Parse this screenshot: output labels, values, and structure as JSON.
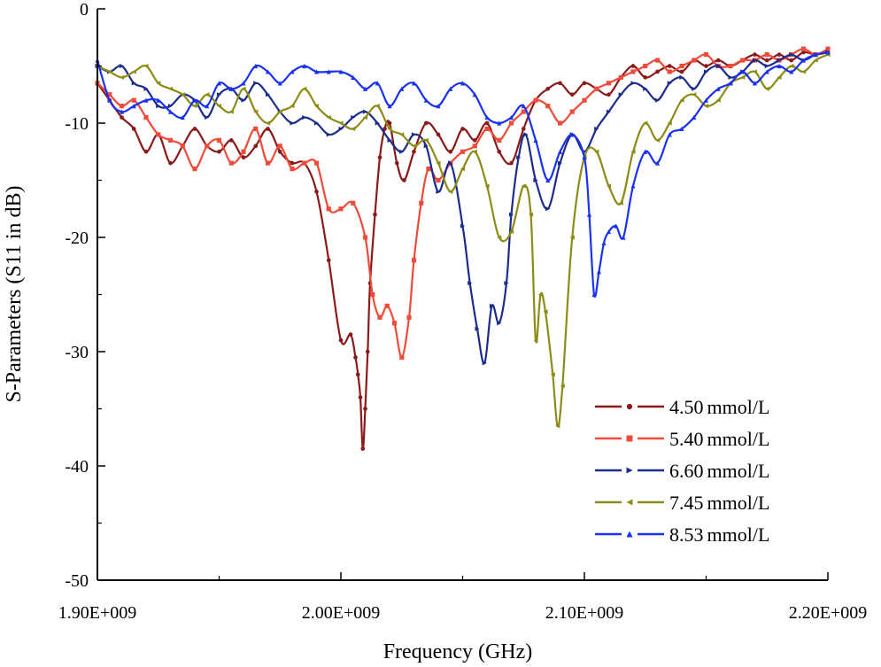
{
  "chart_data": {
    "type": "line",
    "title": "",
    "xlabel": "Frequency (GHz)",
    "ylabel": "S-Parameters (S11 in dB)",
    "xlim": [
      1.9,
      2.2
    ],
    "ylim": [
      -50,
      0
    ],
    "grid": false,
    "legend_position": "bottom-right",
    "x_ticks": [
      {
        "value": 1.9,
        "label": "1.90E+009"
      },
      {
        "value": 2.0,
        "label": "2.00E+009"
      },
      {
        "value": 2.1,
        "label": "2.10E+009"
      },
      {
        "value": 2.2,
        "label": "2.20E+009"
      }
    ],
    "y_ticks": [
      {
        "value": 0,
        "label": "0"
      },
      {
        "value": -10,
        "label": "-10"
      },
      {
        "value": -20,
        "label": "-20"
      },
      {
        "value": -30,
        "label": "-30"
      },
      {
        "value": -40,
        "label": "-40"
      },
      {
        "value": -50,
        "label": "-50"
      }
    ],
    "series": [
      {
        "name": "4.50 mmol/L",
        "label_value": "4.50",
        "label_unit": "mmol/L",
        "color": "#8b1a1a",
        "marker": "circle",
        "x": [
          1.9,
          1.905,
          1.91,
          1.915,
          1.92,
          1.925,
          1.93,
          1.935,
          1.94,
          1.945,
          1.95,
          1.955,
          1.96,
          1.965,
          1.97,
          1.975,
          1.98,
          1.985,
          1.99,
          1.995,
          2.0,
          2.004,
          2.006,
          2.007,
          2.008,
          2.009,
          2.01,
          2.011,
          2.012,
          2.014,
          2.016,
          2.018,
          2.02,
          2.023,
          2.026,
          2.03,
          2.035,
          2.04,
          2.045,
          2.05,
          2.055,
          2.06,
          2.065,
          2.07,
          2.075,
          2.08,
          2.085,
          2.09,
          2.095,
          2.1,
          2.105,
          2.11,
          2.115,
          2.12,
          2.125,
          2.13,
          2.135,
          2.14,
          2.145,
          2.15,
          2.155,
          2.16,
          2.165,
          2.17,
          2.175,
          2.18,
          2.185,
          2.19,
          2.195,
          2.2
        ],
        "y": [
          -6.5,
          -8.0,
          -9.5,
          -10.5,
          -12.5,
          -11.0,
          -13.5,
          -12.0,
          -10.5,
          -12.0,
          -12.5,
          -11.5,
          -13.0,
          -12.0,
          -10.5,
          -12.5,
          -13.5,
          -13.5,
          -16.0,
          -22.0,
          -29.0,
          -28.5,
          -30.5,
          -32.0,
          -34.0,
          -38.5,
          -35.0,
          -30.0,
          -24.0,
          -18.0,
          -13.0,
          -10.5,
          -10.0,
          -13.5,
          -15.0,
          -12.5,
          -10.0,
          -11.0,
          -12.5,
          -10.5,
          -11.5,
          -10.0,
          -12.5,
          -13.5,
          -10.5,
          -8.0,
          -7.0,
          -6.5,
          -7.5,
          -6.5,
          -7.0,
          -7.5,
          -6.0,
          -5.0,
          -6.0,
          -5.5,
          -5.0,
          -5.5,
          -4.5,
          -5.0,
          -4.5,
          -5.0,
          -4.5,
          -4.0,
          -4.5,
          -4.0,
          -4.5,
          -3.8,
          -4.0,
          -3.8
        ]
      },
      {
        "name": "5.40 mmol/L",
        "label_value": "5.40",
        "label_unit": "mmol/L",
        "color": "#f04a3a",
        "marker": "square",
        "x": [
          1.9,
          1.905,
          1.91,
          1.915,
          1.92,
          1.925,
          1.93,
          1.935,
          1.94,
          1.945,
          1.95,
          1.955,
          1.96,
          1.965,
          1.97,
          1.975,
          1.98,
          1.985,
          1.99,
          1.995,
          2.0,
          2.005,
          2.01,
          2.013,
          2.016,
          2.019,
          2.022,
          2.025,
          2.028,
          2.03,
          2.033,
          2.036,
          2.04,
          2.045,
          2.05,
          2.055,
          2.06,
          2.065,
          2.07,
          2.075,
          2.08,
          2.085,
          2.09,
          2.095,
          2.1,
          2.105,
          2.11,
          2.115,
          2.12,
          2.125,
          2.13,
          2.135,
          2.14,
          2.145,
          2.15,
          2.155,
          2.16,
          2.165,
          2.17,
          2.175,
          2.18,
          2.185,
          2.19,
          2.195,
          2.2
        ],
        "y": [
          -6.5,
          -7.5,
          -8.5,
          -8.0,
          -9.5,
          -11.0,
          -11.5,
          -12.0,
          -14.0,
          -12.0,
          -11.5,
          -13.5,
          -12.5,
          -10.5,
          -13.5,
          -12.0,
          -14.0,
          -13.5,
          -13.5,
          -17.5,
          -17.5,
          -17.0,
          -20.0,
          -25.0,
          -27.0,
          -26.0,
          -27.5,
          -30.5,
          -27.0,
          -22.0,
          -17.0,
          -14.0,
          -15.0,
          -13.5,
          -12.5,
          -12.0,
          -10.5,
          -11.5,
          -10.0,
          -9.0,
          -8.0,
          -8.5,
          -10.0,
          -9.0,
          -8.0,
          -7.0,
          -6.5,
          -6.0,
          -5.5,
          -5.0,
          -4.5,
          -5.5,
          -5.0,
          -4.5,
          -4.0,
          -5.0,
          -5.0,
          -4.5,
          -4.5,
          -4.0,
          -4.5,
          -4.0,
          -3.5,
          -4.0,
          -3.5
        ]
      },
      {
        "name": "6.60 mmol/L",
        "label_value": "6.60",
        "label_unit": "mmol/L",
        "color": "#1c2c8c",
        "marker": "triangle-right",
        "x": [
          1.9,
          1.905,
          1.91,
          1.915,
          1.92,
          1.925,
          1.93,
          1.935,
          1.94,
          1.945,
          1.95,
          1.955,
          1.96,
          1.965,
          1.97,
          1.975,
          1.98,
          1.985,
          1.99,
          1.995,
          2.0,
          2.005,
          2.01,
          2.015,
          2.02,
          2.025,
          2.03,
          2.035,
          2.04,
          2.045,
          2.05,
          2.053,
          2.056,
          2.059,
          2.062,
          2.065,
          2.068,
          2.07,
          2.073,
          2.076,
          2.08,
          2.085,
          2.09,
          2.095,
          2.1,
          2.105,
          2.11,
          2.115,
          2.12,
          2.125,
          2.13,
          2.135,
          2.14,
          2.145,
          2.15,
          2.155,
          2.16,
          2.165,
          2.17,
          2.175,
          2.18,
          2.185,
          2.19,
          2.195,
          2.2
        ],
        "y": [
          -5.0,
          -5.5,
          -5.0,
          -6.5,
          -7.0,
          -8.5,
          -8.5,
          -7.5,
          -8.0,
          -9.5,
          -7.5,
          -7.0,
          -8.0,
          -6.5,
          -7.5,
          -9.0,
          -10.0,
          -9.5,
          -10.0,
          -11.0,
          -10.5,
          -9.5,
          -9.0,
          -10.0,
          -11.5,
          -12.5,
          -11.0,
          -12.0,
          -16.0,
          -13.5,
          -19.0,
          -24.0,
          -28.0,
          -31.0,
          -26.0,
          -27.5,
          -24.0,
          -18.0,
          -13.0,
          -11.0,
          -15.0,
          -17.5,
          -13.5,
          -11.0,
          -12.5,
          -10.5,
          -9.0,
          -7.5,
          -6.5,
          -7.0,
          -8.0,
          -6.5,
          -6.0,
          -7.0,
          -5.5,
          -5.0,
          -6.0,
          -5.5,
          -4.5,
          -5.0,
          -4.5,
          -4.0,
          -4.5,
          -4.0,
          -3.8
        ]
      },
      {
        "name": "7.45 mmol/L",
        "label_value": "7.45",
        "label_unit": "mmol/L",
        "color": "#8c8c14",
        "marker": "triangle-left",
        "x": [
          1.9,
          1.905,
          1.91,
          1.915,
          1.92,
          1.925,
          1.93,
          1.935,
          1.94,
          1.945,
          1.95,
          1.955,
          1.96,
          1.965,
          1.97,
          1.975,
          1.98,
          1.985,
          1.99,
          1.995,
          2.0,
          2.005,
          2.01,
          2.015,
          2.02,
          2.025,
          2.03,
          2.035,
          2.04,
          2.045,
          2.05,
          2.055,
          2.06,
          2.065,
          2.07,
          2.075,
          2.078,
          2.08,
          2.082,
          2.084,
          2.087,
          2.089,
          2.091,
          2.095,
          2.1,
          2.105,
          2.11,
          2.115,
          2.12,
          2.125,
          2.13,
          2.135,
          2.14,
          2.145,
          2.15,
          2.155,
          2.16,
          2.165,
          2.17,
          2.175,
          2.18,
          2.185,
          2.19,
          2.195,
          2.2
        ],
        "y": [
          -5.0,
          -5.5,
          -6.0,
          -5.5,
          -5.0,
          -6.5,
          -7.0,
          -7.5,
          -8.5,
          -7.5,
          -8.5,
          -9.0,
          -7.0,
          -9.0,
          -10.0,
          -9.0,
          -8.5,
          -7.0,
          -8.5,
          -9.5,
          -10.0,
          -10.5,
          -9.5,
          -8.5,
          -10.5,
          -11.0,
          -12.0,
          -11.5,
          -13.5,
          -16.0,
          -14.0,
          -12.5,
          -15.5,
          -20.0,
          -19.5,
          -15.5,
          -18.0,
          -29.0,
          -25.0,
          -26.5,
          -32.0,
          -36.5,
          -33.0,
          -20.0,
          -13.0,
          -12.5,
          -15.5,
          -17.0,
          -12.5,
          -10.0,
          -11.5,
          -10.0,
          -8.0,
          -7.5,
          -8.5,
          -8.0,
          -6.5,
          -6.0,
          -5.5,
          -7.0,
          -6.0,
          -5.0,
          -5.5,
          -4.5,
          -4.0
        ]
      },
      {
        "name": "8.53 mmol/L",
        "label_value": "8.53",
        "label_unit": "mmol/L",
        "color": "#1a32f0",
        "marker": "triangle-up",
        "x": [
          1.9,
          1.905,
          1.91,
          1.915,
          1.92,
          1.925,
          1.93,
          1.935,
          1.94,
          1.945,
          1.95,
          1.955,
          1.96,
          1.965,
          1.97,
          1.975,
          1.98,
          1.985,
          1.99,
          1.995,
          2.0,
          2.005,
          2.01,
          2.015,
          2.02,
          2.025,
          2.03,
          2.035,
          2.04,
          2.045,
          2.05,
          2.055,
          2.06,
          2.065,
          2.07,
          2.075,
          2.08,
          2.085,
          2.09,
          2.095,
          2.1,
          2.102,
          2.104,
          2.106,
          2.108,
          2.11,
          2.113,
          2.116,
          2.12,
          2.125,
          2.13,
          2.135,
          2.14,
          2.145,
          2.15,
          2.155,
          2.16,
          2.165,
          2.17,
          2.175,
          2.18,
          2.185,
          2.19,
          2.195,
          2.2
        ],
        "y": [
          -4.5,
          -8.0,
          -9.0,
          -8.5,
          -8.0,
          -8.0,
          -9.0,
          -9.5,
          -8.0,
          -8.5,
          -6.5,
          -7.0,
          -6.5,
          -5.0,
          -5.5,
          -6.5,
          -5.5,
          -5.0,
          -5.5,
          -5.5,
          -5.5,
          -6.0,
          -7.0,
          -6.5,
          -8.5,
          -7.0,
          -6.5,
          -8.0,
          -8.5,
          -7.0,
          -6.5,
          -7.5,
          -9.5,
          -10.0,
          -9.5,
          -8.5,
          -11.5,
          -15.0,
          -12.5,
          -11.0,
          -13.0,
          -18.0,
          -25.0,
          -23.0,
          -20.5,
          -19.5,
          -19.0,
          -20.0,
          -15.5,
          -12.5,
          -13.5,
          -11.0,
          -10.5,
          -9.5,
          -8.0,
          -7.0,
          -6.5,
          -5.5,
          -6.5,
          -5.5,
          -5.0,
          -5.5,
          -4.5,
          -4.0,
          -3.8
        ]
      }
    ]
  }
}
